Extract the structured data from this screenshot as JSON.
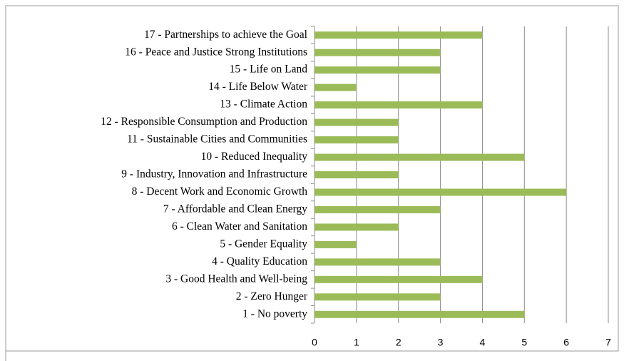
{
  "chart_data": {
    "type": "bar",
    "orientation": "horizontal",
    "categories": [
      "17 - Partnerships to achieve the Goal",
      "16 - Peace and Justice Strong Institutions",
      "15 - Life on Land",
      "14 - Life Below Water",
      "13 - Climate Action",
      "12 - Responsible Consumption and Production",
      "11 - Sustainable Cities and Communities",
      "10 - Reduced Inequality",
      "9 - Industry, Innovation and Infrastructure",
      "8 - Decent Work and Economic Growth",
      "7 - Affordable and Clean Energy",
      "6 - Clean Water and Sanitation",
      "5 - Gender Equality",
      "4 - Quality Education",
      "3 - Good Health and Well-being",
      "2 - Zero Hunger",
      "1 - No poverty"
    ],
    "values": [
      4,
      3,
      3,
      1,
      4,
      2,
      2,
      5,
      2,
      6,
      3,
      2,
      1,
      3,
      4,
      3,
      5
    ],
    "color": "#9bbb59",
    "xlim": [
      0,
      7
    ],
    "xticks": [
      0,
      1,
      2,
      3,
      4,
      5,
      6,
      7
    ],
    "grid": true
  }
}
